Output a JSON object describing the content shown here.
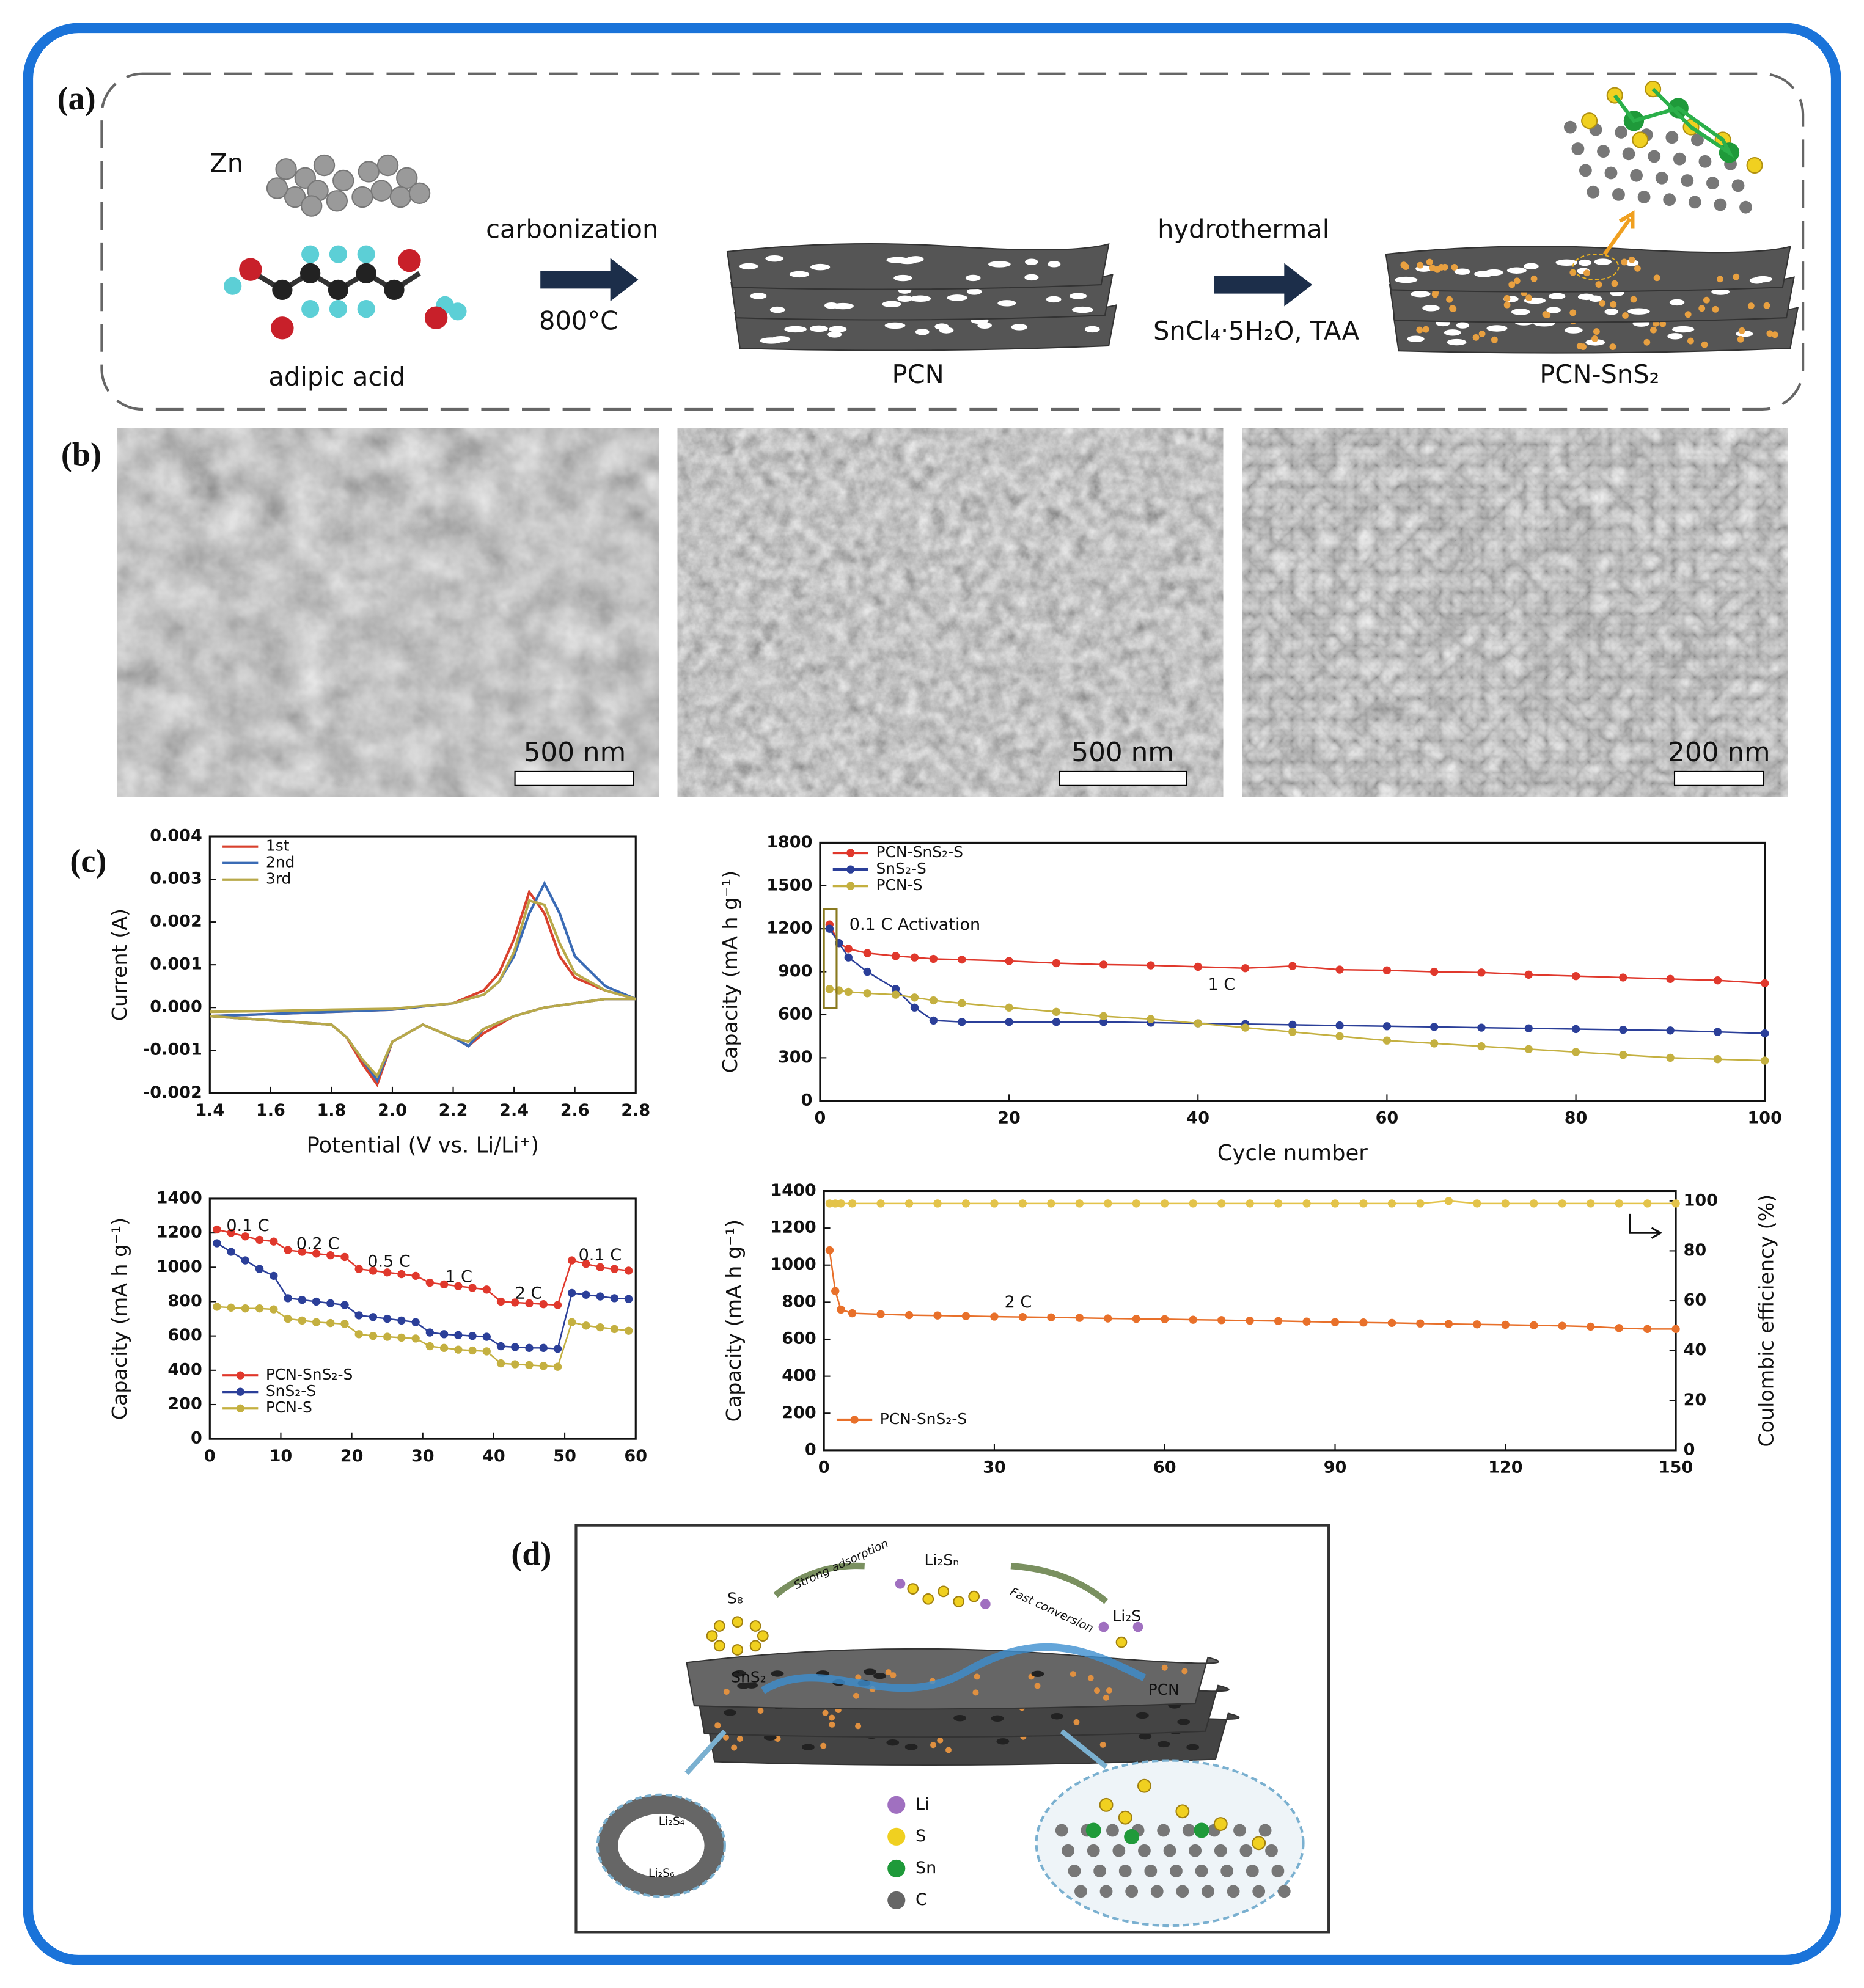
{
  "panel_labels": [
    "(a)",
    "(b)",
    "(c)",
    "(d)"
  ],
  "scheme": {
    "zn": "Zn",
    "acid": "adipic acid",
    "step1": "carbonization",
    "step1_temp": "800°C",
    "pcn": "PCN",
    "step2": "hydrothermal",
    "step2_reagents": "SnCl₄·5H₂O, TAA",
    "product": "PCN-SnS₂"
  },
  "sem_scale_bars": [
    "500 nm",
    "500 nm",
    "200 nm"
  ],
  "chart_data": [
    {
      "type": "line",
      "xlabel": "Potential (V vs. Li/Li⁺)",
      "ylabel": "Current (A)",
      "x": [
        1.4,
        1.6,
        1.8,
        2.0,
        2.2,
        2.3,
        2.35,
        2.4,
        2.45,
        2.5,
        2.55,
        2.6,
        2.7,
        2.8,
        2.7,
        2.6,
        2.5,
        2.4,
        2.3,
        2.25,
        2.2,
        2.1,
        2.0,
        1.95,
        1.9,
        1.85,
        1.8,
        1.6,
        1.4
      ],
      "series": [
        {
          "name": "1st",
          "color": "#d9412e",
          "values": [
            -0.0002,
            -0.00015,
            -0.0001,
            -5e-05,
            0.0001,
            0.0004,
            0.0008,
            0.0016,
            0.0027,
            0.0022,
            0.0012,
            0.0007,
            0.0004,
            0.0002,
            0.0002,
            0.0001,
            0,
            -0.0002,
            -0.0006,
            -0.0009,
            -0.0007,
            -0.0004,
            -0.0008,
            -0.0018,
            -0.0013,
            -0.0007,
            -0.0004,
            -0.0003,
            -0.0002
          ]
        },
        {
          "name": "2nd",
          "color": "#3a6bb5",
          "values": [
            -0.0002,
            -0.00015,
            -0.0001,
            -5e-05,
            0.0001,
            0.0003,
            0.0006,
            0.0012,
            0.0022,
            0.0029,
            0.0022,
            0.0012,
            0.0005,
            0.0002,
            0.0002,
            0.0001,
            0,
            -0.0002,
            -0.0005,
            -0.0009,
            -0.0007,
            -0.0004,
            -0.0008,
            -0.0017,
            -0.0012,
            -0.0007,
            -0.0004,
            -0.0003,
            -0.0002
          ]
        },
        {
          "name": "3rd",
          "color": "#b8a94a",
          "values": [
            -0.0001,
            -8e-05,
            -5e-05,
            -3e-05,
            0.0001,
            0.0003,
            0.0006,
            0.0013,
            0.0025,
            0.0024,
            0.0015,
            0.0008,
            0.0004,
            0.0002,
            0.0002,
            0.0001,
            0,
            -0.0002,
            -0.0005,
            -0.0008,
            -0.0007,
            -0.0004,
            -0.0008,
            -0.0016,
            -0.0012,
            -0.0007,
            -0.0004,
            -0.0003,
            -0.0002
          ]
        }
      ],
      "xlim": [
        1.4,
        2.8
      ],
      "xticks": [
        1.4,
        1.6,
        1.8,
        {
          "value": 2,
          "label": "2.0"
        },
        2.2,
        2.4,
        2.6,
        2.8
      ],
      "ylim": [
        -0.002,
        0.004
      ],
      "yticks": [
        -0.002,
        -0.001,
        {
          "value": 0,
          "label": "0.000"
        },
        0.001,
        0.002,
        0.003,
        0.004
      ],
      "markers": false,
      "legend": "upper left"
    },
    {
      "type": "line",
      "xlabel": "Cycle number",
      "ylabel": "Capacity (mA h g⁻¹)",
      "annotations": [
        "0.1 C Activation",
        "1 C"
      ],
      "x": [
        1,
        2,
        3,
        5,
        8,
        10,
        12,
        15,
        20,
        25,
        30,
        35,
        40,
        45,
        50,
        55,
        60,
        65,
        70,
        75,
        80,
        85,
        90,
        95,
        100
      ],
      "series": [
        {
          "name": "PCN-SnS₂-S",
          "color": "#e0382c",
          "values": [
            1230,
            1100,
            1060,
            1030,
            1010,
            1000,
            990,
            985,
            975,
            960,
            950,
            945,
            935,
            925,
            940,
            915,
            910,
            900,
            895,
            880,
            870,
            860,
            850,
            840,
            820
          ]
        },
        {
          "name": "SnS₂-S",
          "color": "#2b3f99",
          "values": [
            1200,
            1100,
            1000,
            900,
            780,
            650,
            560,
            550,
            550,
            550,
            550,
            545,
            540,
            535,
            530,
            525,
            520,
            515,
            510,
            505,
            500,
            495,
            490,
            480,
            470
          ]
        },
        {
          "name": "PCN-S",
          "color": "#c4b040",
          "values": [
            780,
            770,
            760,
            750,
            740,
            720,
            700,
            680,
            650,
            620,
            590,
            570,
            540,
            510,
            480,
            450,
            420,
            400,
            380,
            360,
            340,
            320,
            300,
            290,
            280
          ]
        }
      ],
      "xlim": [
        0,
        100
      ],
      "xticks": [
        0,
        20,
        40,
        60,
        80,
        100
      ],
      "ylim": [
        0,
        1800
      ],
      "yticks": [
        0,
        300,
        600,
        900,
        1200,
        1500,
        1800
      ],
      "markers": true,
      "legend": "upper left"
    },
    {
      "type": "line",
      "ylabel": "Capacity (mA h g⁻¹)",
      "annotations": [
        "0.1 C",
        "0.2 C",
        "0.5 C",
        "1 C",
        "2 C",
        "0.1 C"
      ],
      "x": [
        1,
        3,
        5,
        7,
        9,
        11,
        13,
        15,
        17,
        19,
        21,
        23,
        25,
        27,
        29,
        31,
        33,
        35,
        37,
        39,
        41,
        43,
        45,
        47,
        49,
        51,
        53,
        55,
        57,
        59
      ],
      "series": [
        {
          "name": "PCN-SnS₂-S",
          "color": "#e0382c",
          "values": [
            1220,
            1200,
            1180,
            1160,
            1150,
            1100,
            1090,
            1080,
            1070,
            1060,
            990,
            980,
            970,
            960,
            950,
            910,
            900,
            890,
            880,
            870,
            800,
            795,
            790,
            785,
            780,
            1040,
            1020,
            1000,
            990,
            980
          ]
        },
        {
          "name": "SnS₂-S",
          "color": "#2b3f99",
          "values": [
            1140,
            1090,
            1040,
            990,
            950,
            820,
            810,
            800,
            790,
            780,
            720,
            710,
            700,
            690,
            680,
            620,
            610,
            605,
            600,
            595,
            540,
            535,
            530,
            530,
            525,
            850,
            840,
            830,
            820,
            815
          ]
        },
        {
          "name": "PCN-S",
          "color": "#c4b040",
          "values": [
            770,
            765,
            760,
            760,
            755,
            700,
            690,
            680,
            675,
            670,
            610,
            600,
            595,
            590,
            585,
            540,
            530,
            520,
            515,
            510,
            440,
            435,
            430,
            425,
            420,
            680,
            660,
            650,
            640,
            630
          ]
        }
      ],
      "xlim": [
        0,
        60
      ],
      "xticks": [
        0,
        10,
        20,
        30,
        40,
        50,
        60
      ],
      "ylim": [
        0,
        1400
      ],
      "yticks": [
        0,
        200,
        400,
        600,
        800,
        1000,
        1200,
        1400
      ],
      "markers": true,
      "legend": "lower left"
    },
    {
      "type": "line",
      "ylabel": "Capacity (mA h g⁻¹)",
      "y2label": "Coulombic efficiency (%)",
      "annotations": [
        "2 C"
      ],
      "x": [
        1,
        2,
        3,
        5,
        10,
        15,
        20,
        25,
        30,
        35,
        40,
        45,
        50,
        55,
        60,
        65,
        70,
        75,
        80,
        85,
        90,
        95,
        100,
        105,
        110,
        115,
        120,
        125,
        130,
        135,
        140,
        145,
        150
      ],
      "series": [
        {
          "name": "PCN-SnS₂-S",
          "color": "#e8702a",
          "values": [
            1080,
            860,
            760,
            740,
            735,
            730,
            728,
            725,
            722,
            720,
            718,
            715,
            712,
            710,
            708,
            705,
            703,
            700,
            698,
            695,
            692,
            690,
            688,
            685,
            682,
            680,
            678,
            675,
            672,
            668,
            660,
            655,
            655
          ]
        },
        {
          "color": "#e3c34a",
          "axis": "y2",
          "values": [
            99,
            99,
            99,
            99,
            99,
            99,
            99,
            99,
            99,
            99,
            99,
            99,
            99,
            99,
            99,
            99,
            99,
            99,
            99,
            99,
            99,
            99,
            99,
            99,
            100,
            99,
            99,
            99,
            99,
            99,
            99,
            99,
            99
          ]
        }
      ],
      "xlim": [
        0,
        150
      ],
      "xticks": [
        0,
        30,
        60,
        90,
        120,
        150
      ],
      "ylim": [
        0,
        1400
      ],
      "yticks": [
        0,
        200,
        400,
        600,
        800,
        1000,
        1200,
        1400
      ],
      "y2lim": [
        0,
        104
      ],
      "y2ticks": [
        0,
        20,
        40,
        60,
        80,
        100
      ],
      "markers": true,
      "legend": "lower left"
    }
  ],
  "mechanism": {
    "s8": "S₈",
    "adsorption": "Strong adsorption",
    "polysulfide": "Li₂Sₙ",
    "conversion": "Fast conversion",
    "li2s": "Li₂S",
    "sns2": "SnS₂",
    "pcn": "PCN",
    "li2s4": "Li₂S₄",
    "li2s6": "Li₂S₆",
    "legend": [
      "Li",
      "S",
      "Sn",
      "C"
    ]
  }
}
